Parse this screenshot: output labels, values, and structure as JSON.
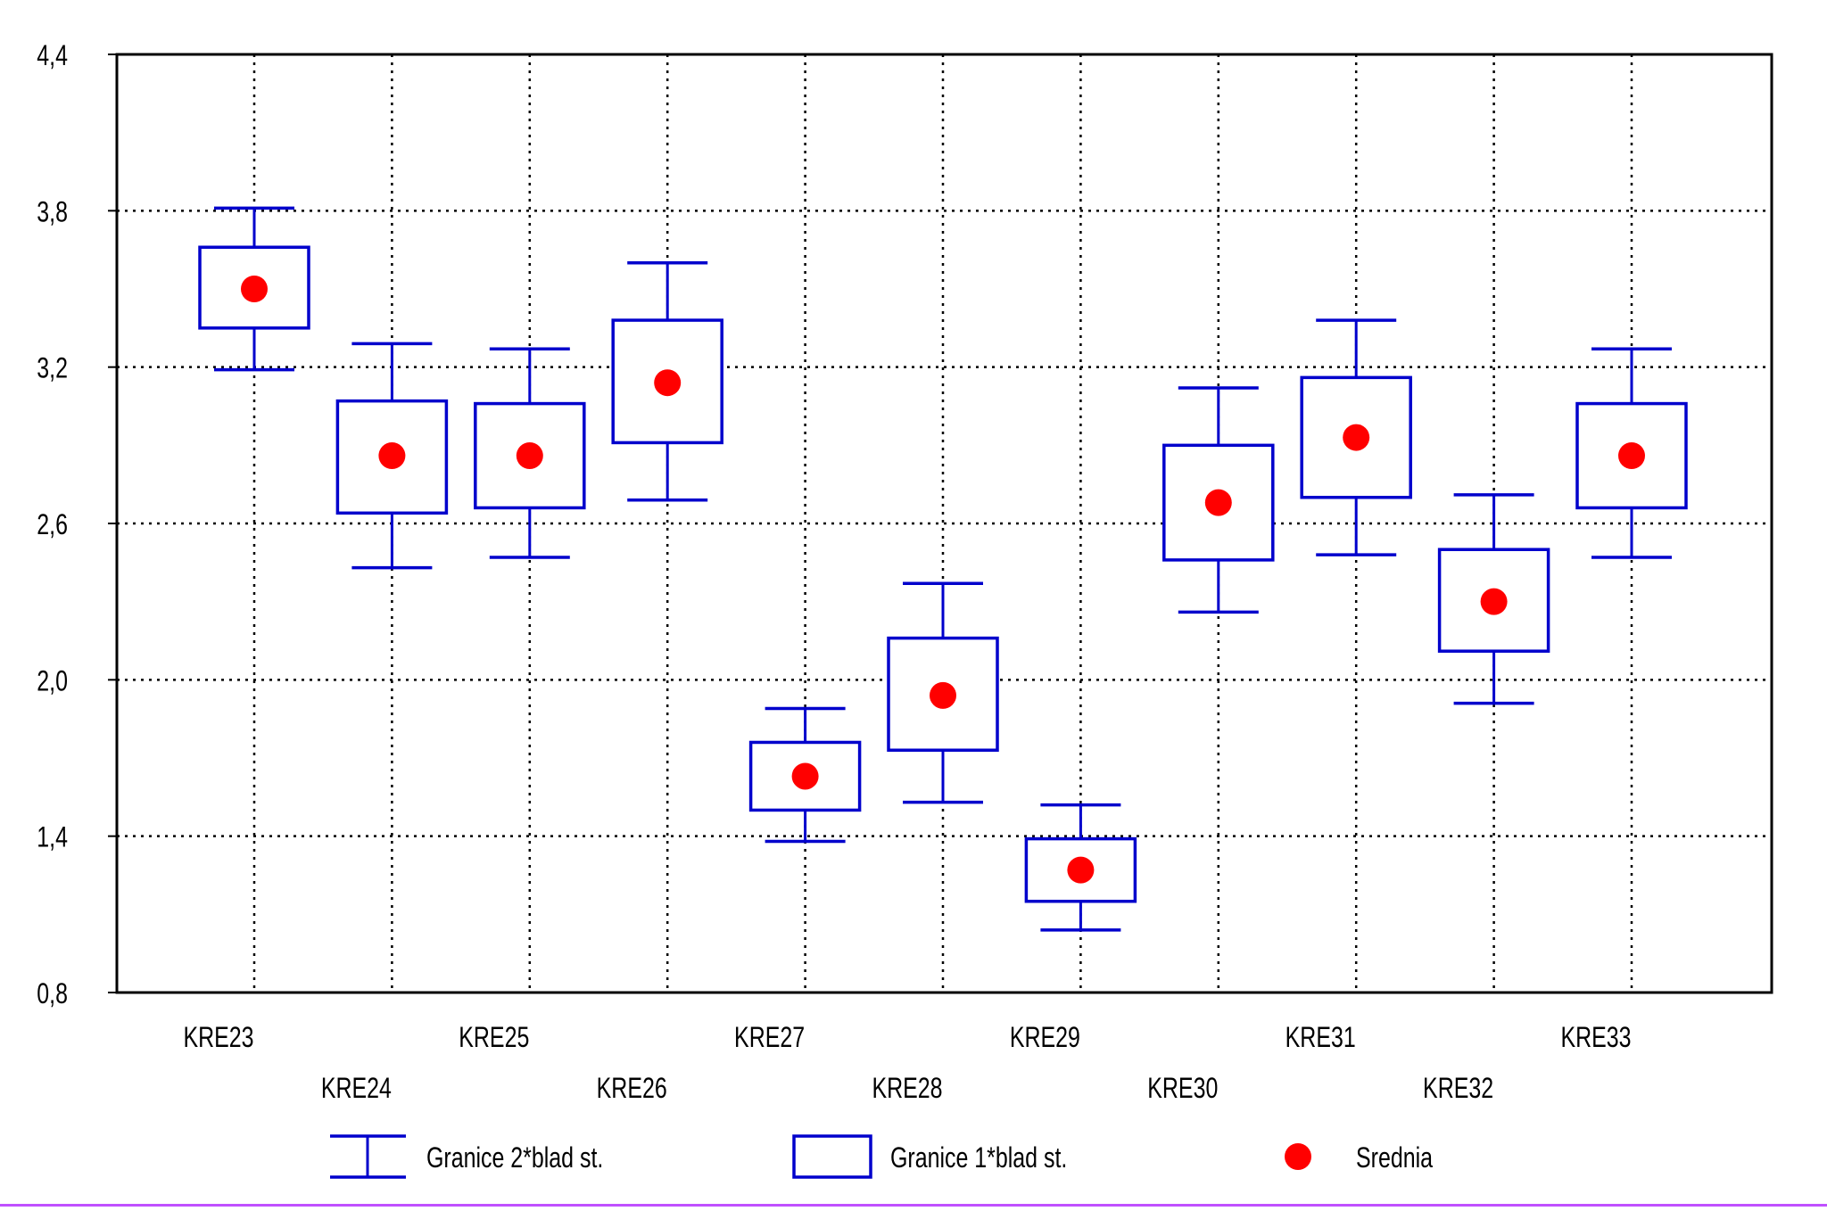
{
  "chart_data": {
    "type": "box",
    "title": "",
    "xlabel": "",
    "ylabel": "",
    "ylim": [
      0.8,
      4.4
    ],
    "yticks": [
      "0,8",
      "1,4",
      "2,0",
      "2,6",
      "3,2",
      "3,8",
      "4,4"
    ],
    "ytick_values": [
      0.8,
      1.4,
      2.0,
      2.6,
      3.2,
      3.8,
      4.4
    ],
    "grid": true,
    "categories": [
      "KRE23",
      "KRE24",
      "KRE25",
      "KRE26",
      "KRE27",
      "KRE28",
      "KRE29",
      "KRE30",
      "KRE31",
      "KRE32",
      "KRE33"
    ],
    "series": [
      {
        "name": "Srednia",
        "values": [
          3.5,
          2.86,
          2.86,
          3.14,
          1.63,
          1.94,
          1.27,
          2.68,
          2.93,
          2.3,
          2.86
        ]
      },
      {
        "name": "Granice 1*blad st.",
        "lower": [
          3.35,
          2.64,
          2.66,
          2.91,
          1.5,
          1.73,
          1.15,
          2.46,
          2.7,
          2.11,
          2.66
        ],
        "upper": [
          3.66,
          3.07,
          3.06,
          3.38,
          1.76,
          2.16,
          1.39,
          2.9,
          3.16,
          2.5,
          3.06
        ]
      },
      {
        "name": "Granice 2*blad st.",
        "lower": [
          3.19,
          2.43,
          2.47,
          2.69,
          1.38,
          1.53,
          1.04,
          2.26,
          2.48,
          1.91,
          2.47
        ],
        "upper": [
          3.81,
          3.29,
          3.27,
          3.6,
          1.89,
          2.37,
          1.52,
          3.12,
          3.38,
          2.71,
          3.27
        ]
      }
    ],
    "legend": {
      "position": "bottom",
      "items": [
        {
          "label": "Granice 2*blad st.",
          "symbol": "whisker"
        },
        {
          "label": "Granice 1*blad st.",
          "symbol": "box"
        },
        {
          "label": "Srednia",
          "symbol": "dot"
        }
      ]
    },
    "colors": {
      "box": "#0000cc",
      "mean": "#ff0000",
      "grid": "#000000",
      "frame": "#000000"
    }
  }
}
